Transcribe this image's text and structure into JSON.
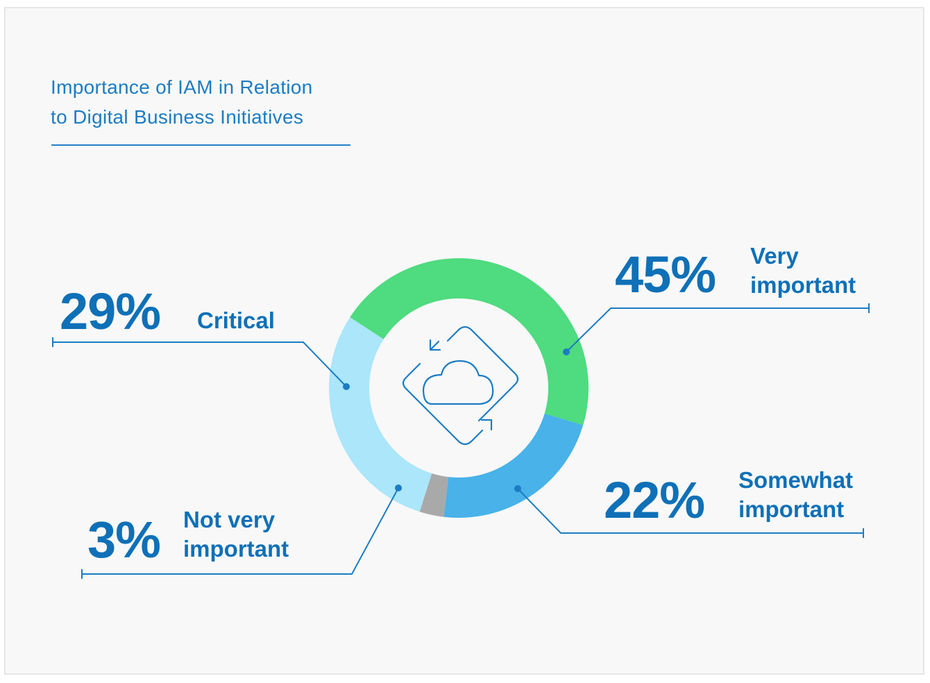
{
  "chart_data": {
    "type": "pie",
    "variant": "donut",
    "title": "Importance of IAM in Relation to Digital Business Initiatives",
    "title_lines": [
      "Importance of IAM in Relation",
      "to Digital Business Initiatives"
    ],
    "categories": [
      "Very important",
      "Somewhat important",
      "Not very important",
      "Critical"
    ],
    "values": [
      45,
      22,
      3,
      29
    ],
    "value_labels": [
      "45%",
      "22%",
      "3%",
      "29%"
    ],
    "label_lines": [
      [
        "Very",
        "important"
      ],
      [
        "Somewhat",
        "important"
      ],
      [
        "Not very",
        "important"
      ],
      [
        "Critical"
      ]
    ],
    "colors": [
      "#4fdb7f",
      "#48b2e9",
      "#a9a9a9",
      "#abe6fb"
    ],
    "legend": "none",
    "center_icon": "cloud-sync-icon"
  }
}
